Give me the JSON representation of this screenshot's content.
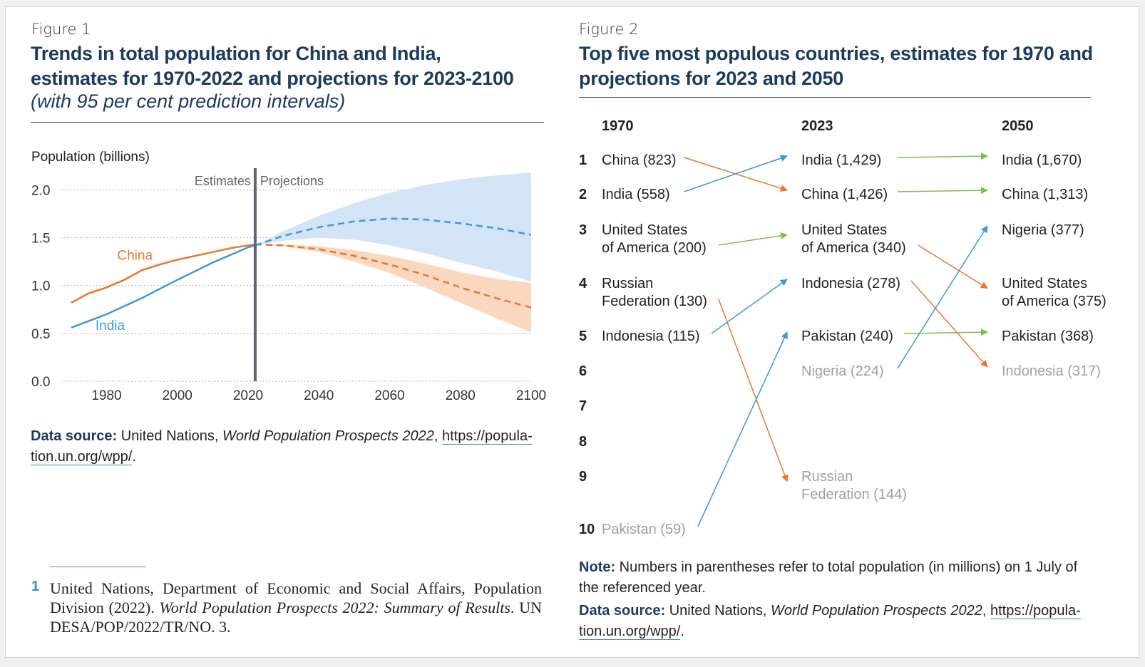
{
  "figure1": {
    "label": "Figure 1",
    "title_line1": "Trends in total population for China and India,",
    "title_line2": "estimates for 1970-2022 and projections for 2023-2100",
    "subtitle": "(with 95 per cent prediction intervals)",
    "data_source_label": "Data source:",
    "data_source_text": "United Nations,",
    "data_source_pub": "World Population Prospects 2022",
    "data_source_url1": "https://popula-",
    "data_source_url2": "tion.un.org/wpp/",
    "data_source_end": "."
  },
  "figure2": {
    "label": "Figure 2",
    "title_line1": "Top five most populous countries, estimates for 1970 and",
    "title_line2": "projections for 2023 and 2050",
    "note_label": "Note:",
    "note_text": "Numbers in parentheses refer to total population (in millions) on 1 July of",
    "note_text2": "the referenced year.",
    "data_source_label": "Data source:",
    "data_source_text": "United Nations,",
    "data_source_pub": "World Population Prospects 2022",
    "data_source_url1": "https://popula-",
    "data_source_url2": "tion.un.org/wpp/",
    "data_source_end": "."
  },
  "footnote": {
    "number": "1",
    "text_a": "United Nations, Department of Economic and Social Affairs, Population Division (2022). ",
    "text_italic": "World Population Prospects 2022: Summary of Results",
    "text_b": ". UN DESA/POP/2022/TR/NO. 3."
  },
  "colors": {
    "china": "#e8772e",
    "india": "#3a9ad9",
    "green": "#7cc04a",
    "title": "#1c3a5e",
    "grey_text": "#a0a0a0"
  },
  "chart_data": [
    {
      "type": "line",
      "ylabel": "Population (billions)",
      "xlim": [
        1967,
        2100
      ],
      "ylim": [
        0,
        2.1
      ],
      "yticks": [
        "0.0",
        "0.5",
        "1.0",
        "1.5",
        "2.0"
      ],
      "yticks_values": [
        0,
        0.5,
        1.0,
        1.5,
        2.0
      ],
      "xticks": [
        "1980",
        "2000",
        "2020",
        "2040",
        "2060",
        "2080",
        "2100"
      ],
      "xticks_values": [
        1980,
        2000,
        2020,
        2040,
        2060,
        2080,
        2100
      ],
      "grid": "horizontal-dotted",
      "divider_year": 2022,
      "divider_labels": {
        "left": "Estimates",
        "right": "Projections"
      },
      "series": [
        {
          "name": "China",
          "color": "#e8772e",
          "estimates": {
            "x": [
              1970,
              1975,
              1980,
              1985,
              1990,
              1995,
              2000,
              2005,
              2010,
              2015,
              2020,
              2022
            ],
            "y": [
              0.82,
              0.92,
              0.98,
              1.06,
              1.16,
              1.22,
              1.27,
              1.31,
              1.35,
              1.39,
              1.42,
              1.43
            ]
          },
          "projection_median": {
            "x": [
              2022,
              2030,
              2040,
              2050,
              2060,
              2070,
              2080,
              2090,
              2100
            ],
            "y": [
              1.43,
              1.42,
              1.38,
              1.31,
              1.22,
              1.11,
              0.98,
              0.87,
              0.77
            ]
          },
          "interval_upper": {
            "x": [
              2022,
              2030,
              2040,
              2050,
              2060,
              2070,
              2080,
              2090,
              2100
            ],
            "y": [
              1.43,
              1.43,
              1.41,
              1.37,
              1.31,
              1.23,
              1.14,
              1.07,
              1.03
            ]
          },
          "interval_lower": {
            "x": [
              2022,
              2030,
              2040,
              2050,
              2060,
              2070,
              2080,
              2090,
              2100
            ],
            "y": [
              1.43,
              1.41,
              1.35,
              1.25,
              1.13,
              0.98,
              0.82,
              0.66,
              0.51
            ]
          }
        },
        {
          "name": "India",
          "color": "#3a9ad9",
          "estimates": {
            "x": [
              1970,
              1980,
              1990,
              2000,
              2010,
              2020,
              2022
            ],
            "y": [
              0.56,
              0.7,
              0.87,
              1.06,
              1.24,
              1.4,
              1.42
            ]
          },
          "projection_median": {
            "x": [
              2022,
              2030,
              2040,
              2050,
              2060,
              2070,
              2080,
              2090,
              2100
            ],
            "y": [
              1.42,
              1.52,
              1.61,
              1.67,
              1.7,
              1.69,
              1.65,
              1.6,
              1.53
            ]
          },
          "interval_upper": {
            "x": [
              2022,
              2030,
              2040,
              2050,
              2060,
              2070,
              2080,
              2090,
              2100
            ],
            "y": [
              1.42,
              1.57,
              1.73,
              1.86,
              1.97,
              2.05,
              2.11,
              2.15,
              2.18
            ]
          },
          "interval_lower": {
            "x": [
              2022,
              2030,
              2040,
              2050,
              2060,
              2070,
              2080,
              2090,
              2100
            ],
            "y": [
              1.42,
              1.47,
              1.5,
              1.48,
              1.42,
              1.34,
              1.24,
              1.15,
              1.04
            ]
          }
        }
      ]
    },
    {
      "type": "table",
      "columns": [
        "1970",
        "2023",
        "2050"
      ],
      "ranks": [
        "1",
        "2",
        "3",
        "4",
        "5",
        "6",
        "7",
        "8",
        "9",
        "10"
      ],
      "entries": [
        {
          "col": 0,
          "rank": 1,
          "lines": [
            "China (823)"
          ],
          "country": "China",
          "value": 823,
          "muted": false
        },
        {
          "col": 0,
          "rank": 2,
          "lines": [
            "India (558)"
          ],
          "country": "India",
          "value": 558,
          "muted": false
        },
        {
          "col": 0,
          "rank": 3,
          "lines": [
            "United States",
            "of America (200)"
          ],
          "country": "United States of America",
          "value": 200,
          "muted": false
        },
        {
          "col": 0,
          "rank": 4,
          "lines": [
            "Russian",
            "Federation (130)"
          ],
          "country": "Russian Federation",
          "value": 130,
          "muted": false
        },
        {
          "col": 0,
          "rank": 5,
          "lines": [
            "Indonesia (115)"
          ],
          "country": "Indonesia",
          "value": 115,
          "muted": false
        },
        {
          "col": 0,
          "rank": 10,
          "lines": [
            "Pakistan (59)"
          ],
          "country": "Pakistan",
          "value": 59,
          "muted": true
        },
        {
          "col": 1,
          "rank": 1,
          "lines": [
            "India (1,429)"
          ],
          "country": "India",
          "value": 1429,
          "muted": false
        },
        {
          "col": 1,
          "rank": 2,
          "lines": [
            "China (1,426)"
          ],
          "country": "China",
          "value": 1426,
          "muted": false
        },
        {
          "col": 1,
          "rank": 3,
          "lines": [
            "United States",
            "of America (340)"
          ],
          "country": "United States of America",
          "value": 340,
          "muted": false
        },
        {
          "col": 1,
          "rank": 4,
          "lines": [
            "Indonesia (278)"
          ],
          "country": "Indonesia",
          "value": 278,
          "muted": false
        },
        {
          "col": 1,
          "rank": 5,
          "lines": [
            "Pakistan (240)"
          ],
          "country": "Pakistan",
          "value": 240,
          "muted": false
        },
        {
          "col": 1,
          "rank": 6,
          "lines": [
            "Nigeria (224)"
          ],
          "country": "Nigeria",
          "value": 224,
          "muted": true
        },
        {
          "col": 1,
          "rank": 9,
          "lines": [
            "Russian",
            "Federation (144)"
          ],
          "country": "Russian Federation",
          "value": 144,
          "muted": true
        },
        {
          "col": 2,
          "rank": 1,
          "lines": [
            "India (1,670)"
          ],
          "country": "India",
          "value": 1670,
          "muted": false
        },
        {
          "col": 2,
          "rank": 2,
          "lines": [
            "China (1,313)"
          ],
          "country": "China",
          "value": 1313,
          "muted": false
        },
        {
          "col": 2,
          "rank": 3,
          "lines": [
            "Nigeria (377)"
          ],
          "country": "Nigeria",
          "value": 377,
          "muted": false
        },
        {
          "col": 2,
          "rank": 4,
          "lines": [
            "United States",
            "of America (375)"
          ],
          "country": "United States of America",
          "value": 375,
          "muted": false
        },
        {
          "col": 2,
          "rank": 5,
          "lines": [
            "Pakistan (368)"
          ],
          "country": "Pakistan",
          "value": 368,
          "muted": false
        },
        {
          "col": 2,
          "rank": 6,
          "lines": [
            "Indonesia (317)"
          ],
          "country": "Indonesia",
          "value": 317,
          "muted": true
        }
      ],
      "arrows": [
        {
          "from": [
            0,
            1
          ],
          "to": [
            1,
            2
          ],
          "color": "#e8772e"
        },
        {
          "from": [
            0,
            2
          ],
          "to": [
            1,
            1
          ],
          "color": "#3a9ad9"
        },
        {
          "from": [
            0,
            3
          ],
          "to": [
            1,
            3
          ],
          "color": "#7cc04a"
        },
        {
          "from": [
            0,
            4
          ],
          "to": [
            1,
            9
          ],
          "color": "#e8772e"
        },
        {
          "from": [
            0,
            5
          ],
          "to": [
            1,
            4
          ],
          "color": "#3a9ad9"
        },
        {
          "from": [
            0,
            10
          ],
          "to": [
            1,
            5
          ],
          "color": "#3a9ad9"
        },
        {
          "from": [
            1,
            1
          ],
          "to": [
            2,
            1
          ],
          "color": "#7cc04a"
        },
        {
          "from": [
            1,
            2
          ],
          "to": [
            2,
            2
          ],
          "color": "#7cc04a"
        },
        {
          "from": [
            1,
            3
          ],
          "to": [
            2,
            4
          ],
          "color": "#e8772e"
        },
        {
          "from": [
            1,
            4
          ],
          "to": [
            2,
            6
          ],
          "color": "#e8772e"
        },
        {
          "from": [
            1,
            5
          ],
          "to": [
            2,
            5
          ],
          "color": "#7cc04a"
        },
        {
          "from": [
            1,
            6
          ],
          "to": [
            2,
            3
          ],
          "color": "#3a9ad9"
        }
      ]
    }
  ]
}
